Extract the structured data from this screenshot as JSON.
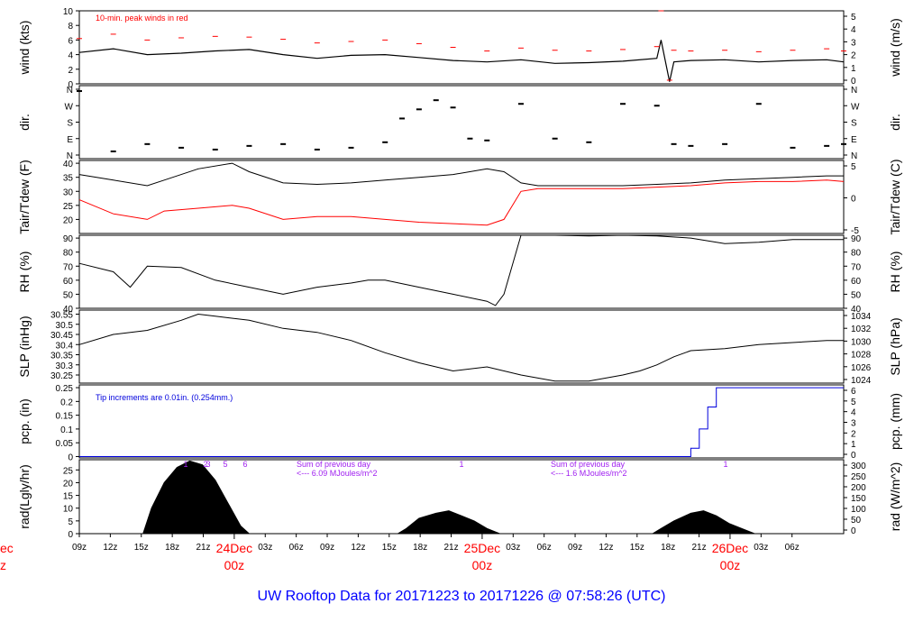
{
  "footer_title": "UW Rooftop Data for 20171223  to  20171226 @ 07:58:26  (UTC)",
  "colors": {
    "black": "#000000",
    "red": "#ff0000",
    "blue": "#0000dd",
    "purple": "#a020f0",
    "footer": "#0000ff"
  },
  "chart_data": [
    {
      "type": "line",
      "panel": "wind",
      "ylabel": "wind (kts)",
      "ylabel_right": "wind (m/s)",
      "ylim": [
        0,
        10
      ],
      "yticks": [
        0,
        2,
        4,
        6,
        8,
        10
      ],
      "yticks_right": [
        0,
        1,
        2,
        3,
        4,
        5
      ],
      "annotation": "10-min. peak winds in red",
      "x_hours": [
        0,
        4,
        8,
        12,
        16,
        20,
        24,
        28,
        32,
        36,
        40,
        44,
        48,
        52,
        56,
        60,
        64,
        68,
        68.5,
        69.5,
        70,
        72,
        76,
        80,
        84,
        88,
        90
      ],
      "series": [
        {
          "values": [
            4.3,
            4.8,
            4.0,
            4.2,
            4.5,
            4.7,
            4.0,
            3.5,
            3.9,
            4.0,
            3.6,
            3.2,
            3.0,
            3.3,
            2.8,
            2.9,
            3.1,
            3.5,
            6.0,
            0.3,
            3.0,
            3.2,
            3.3,
            3.0,
            3.2,
            3.3,
            3.0
          ]
        },
        {
          "values": [
            6.2,
            6.8,
            6.0,
            6.3,
            6.5,
            6.4,
            6.1,
            5.6,
            5.8,
            6.0,
            5.5,
            5.0,
            4.5,
            4.9,
            4.6,
            4.5,
            4.7,
            5.1,
            10.0,
            0.5,
            4.6,
            4.5,
            4.6,
            4.4,
            4.6,
            4.8,
            4.5
          ]
        }
      ]
    },
    {
      "type": "scatter",
      "panel": "dir",
      "ylabel": "dir.",
      "ylabel_right": "dir.",
      "yticks": [
        "N",
        "E",
        "S",
        "W",
        "N"
      ],
      "x_hours": [
        0,
        4,
        8,
        12,
        16,
        20,
        24,
        28,
        32,
        36,
        38,
        40,
        42,
        44,
        46,
        48,
        52,
        56,
        60,
        64,
        68,
        70,
        72,
        76,
        80,
        84,
        88,
        90
      ],
      "values": [
        350,
        20,
        60,
        40,
        30,
        50,
        60,
        30,
        40,
        70,
        200,
        250,
        300,
        260,
        90,
        80,
        280,
        90,
        70,
        280,
        270,
        60,
        50,
        60,
        280,
        40,
        50,
        60
      ]
    },
    {
      "type": "line",
      "panel": "temperature",
      "ylabel": "Tair/Tdew (F)",
      "ylabel_right": "Tair/Tdew (C)",
      "ylim": [
        15,
        41
      ],
      "yticks": [
        20,
        25,
        30,
        35,
        40
      ],
      "yticks_right": [
        -5,
        0,
        5
      ],
      "x_hours": [
        0,
        4,
        8,
        10,
        14,
        18,
        20,
        24,
        28,
        32,
        36,
        40,
        44,
        48,
        50,
        52,
        54,
        56,
        60,
        64,
        68,
        72,
        76,
        80,
        84,
        88,
        90
      ],
      "series": [
        {
          "values": [
            36,
            34,
            32,
            34,
            38,
            40,
            37,
            33,
            32.5,
            33,
            34,
            35,
            36,
            38,
            37,
            33,
            32,
            32,
            32,
            32,
            32.5,
            33,
            34,
            34.5,
            35,
            35.5,
            35.5
          ]
        },
        {
          "values": [
            27,
            22,
            20,
            23,
            24,
            25,
            24,
            20,
            21,
            21,
            20,
            19,
            18.5,
            18,
            20,
            30,
            31,
            31,
            31,
            31,
            31.5,
            32,
            33,
            33.5,
            33.5,
            34,
            33.5
          ]
        }
      ]
    },
    {
      "type": "line",
      "panel": "rh",
      "ylabel": "RH (%)",
      "ylabel_right": "RH (%)",
      "ylim": [
        40,
        92
      ],
      "yticks": [
        40,
        50,
        60,
        70,
        80,
        90
      ],
      "x_hours": [
        0,
        4,
        6,
        8,
        12,
        16,
        20,
        24,
        28,
        32,
        34,
        36,
        40,
        44,
        48,
        49,
        50,
        52,
        56,
        60,
        64,
        68,
        72,
        76,
        80,
        84,
        88,
        90
      ],
      "values": [
        72,
        66,
        55,
        70,
        69,
        60,
        55,
        50,
        55,
        58,
        60,
        60,
        55,
        50,
        45,
        42,
        50,
        92,
        92,
        91.5,
        92,
        91.5,
        90,
        86,
        87,
        89,
        89,
        89
      ]
    },
    {
      "type": "line",
      "panel": "slp",
      "ylabel": "SLP (inHg)",
      "ylabel_right": "SLP (hPa)",
      "ylim": [
        30.21,
        30.57
      ],
      "yticks": [
        30.25,
        30.3,
        30.35,
        30.4,
        30.45,
        30.5,
        30.55
      ],
      "yticks_right": [
        1024,
        1026,
        1028,
        1030,
        1032,
        1034
      ],
      "x_hours": [
        0,
        4,
        8,
        12,
        14,
        16,
        20,
        24,
        28,
        32,
        36,
        40,
        44,
        48,
        52,
        56,
        60,
        64,
        66,
        68,
        70,
        72,
        76,
        80,
        84,
        88,
        90
      ],
      "values": [
        30.4,
        30.45,
        30.47,
        30.52,
        30.55,
        30.54,
        30.52,
        30.48,
        30.46,
        30.42,
        30.36,
        30.31,
        30.27,
        30.29,
        30.25,
        30.22,
        30.22,
        30.25,
        30.27,
        30.3,
        30.34,
        30.37,
        30.38,
        30.4,
        30.41,
        30.42,
        30.42
      ]
    },
    {
      "type": "line",
      "panel": "precip",
      "ylabel": "pcp. (in)",
      "ylabel_right": "pcp. (mm)",
      "ylim": [
        -0.005,
        0.26
      ],
      "yticks": [
        0.0,
        0.05,
        0.1,
        0.15,
        0.2,
        0.25
      ],
      "yticks_right": [
        0,
        1,
        2,
        3,
        4,
        5,
        6
      ],
      "annotation": "Tip increments are 0.01in. (0.254mm.)",
      "x_hours": [
        0,
        71,
        72,
        73,
        74,
        75,
        76,
        90
      ],
      "values": [
        0,
        0,
        0.03,
        0.1,
        0.18,
        0.25,
        0.25,
        0.25
      ]
    },
    {
      "type": "area",
      "panel": "radiation",
      "ylabel": "rad(Lgly/hr)",
      "ylabel_right": "rad (W/m^2)",
      "ylim": [
        0,
        29
      ],
      "yticks": [
        0,
        5,
        10,
        15,
        20,
        25
      ],
      "yticks_right": [
        0,
        50,
        100,
        150,
        200,
        250,
        300
      ],
      "annotations": [
        "Sum of previous day",
        "<--- 6.09 MJoules/m^2",
        "Sum of previous day",
        "<--- 1.6 MJoules/m^2"
      ],
      "top_marks": [
        "1",
        "2",
        "3",
        "5",
        "6",
        "1",
        "1"
      ],
      "days": [
        {
          "x_hours": [
            7.5,
            8.5,
            10,
            11.5,
            13,
            14.5,
            16,
            17.5,
            19,
            20
          ],
          "values": [
            0,
            10,
            20,
            26,
            28.5,
            27,
            21,
            12,
            3,
            0
          ]
        },
        {
          "x_hours": [
            37.5,
            38.5,
            40,
            42,
            43.5,
            45,
            46.5,
            48,
            49.5
          ],
          "values": [
            0,
            2,
            6,
            8,
            9,
            7,
            5,
            2,
            0
          ]
        },
        {
          "x_hours": [
            67.5,
            68.5,
            70,
            72,
            73.5,
            75,
            76.5,
            78,
            79.5
          ],
          "values": [
            0,
            2,
            5,
            8,
            9,
            7,
            4,
            2,
            0
          ]
        }
      ]
    }
  ],
  "x_axis": {
    "hour_ticks": [
      {
        "h": 0,
        "label": "09z"
      },
      {
        "h": 3,
        "label": "12z"
      },
      {
        "h": 6,
        "label": "15z"
      },
      {
        "h": 9,
        "label": "18z"
      },
      {
        "h": 12,
        "label": "21z"
      },
      {
        "h": 18,
        "label": "03z"
      },
      {
        "h": 21,
        "label": "06z"
      },
      {
        "h": 24,
        "label": "09z"
      },
      {
        "h": 27,
        "label": "12z"
      },
      {
        "h": 30,
        "label": "15z"
      },
      {
        "h": 33,
        "label": "18z"
      },
      {
        "h": 36,
        "label": "21z"
      },
      {
        "h": 42,
        "label": "03z"
      },
      {
        "h": 45,
        "label": "06z"
      },
      {
        "h": 48,
        "label": "09z"
      },
      {
        "h": 51,
        "label": "12z"
      },
      {
        "h": 54,
        "label": "15z"
      },
      {
        "h": 57,
        "label": "18z"
      },
      {
        "h": 60,
        "label": "21z"
      },
      {
        "h": 66,
        "label": "03z"
      },
      {
        "h": 69,
        "label": "06z"
      }
    ],
    "day_ticks": [
      {
        "h": 15,
        "day": "24Dec",
        "hour": "00z"
      },
      {
        "h": 39,
        "day": "25Dec",
        "hour": "00z"
      },
      {
        "h": 63,
        "day": "26Dec",
        "hour": "00z"
      }
    ],
    "partial_label_day": "ec",
    "partial_label_hour": "z"
  }
}
